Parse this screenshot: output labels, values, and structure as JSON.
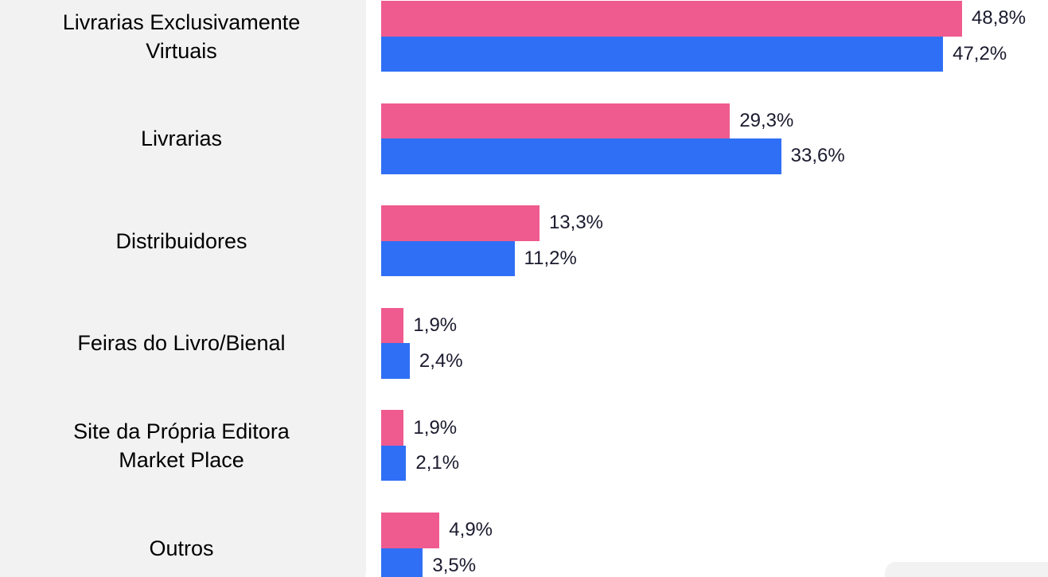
{
  "chart_data": {
    "type": "bar",
    "orientation": "horizontal",
    "categories": [
      "Livrarias Exclusivamente\nVirtuais",
      "Livrarias",
      "Distribuidores",
      "Feiras do Livro/Bienal",
      "Site da Própria Editora\nMarket Place",
      "Outros"
    ],
    "series": [
      {
        "color": "#ef5b8f",
        "values": [
          48.8,
          29.3,
          13.3,
          1.9,
          1.9,
          4.9
        ],
        "value_labels": [
          "48,8%",
          "29,3%",
          "13,3%",
          "1,9%",
          "1,9%",
          "4,9%"
        ]
      },
      {
        "color": "#2f6ff5",
        "values": [
          47.2,
          33.6,
          11.2,
          2.4,
          2.1,
          3.5
        ],
        "value_labels": [
          "47,2%",
          "33,6%",
          "11,2%",
          "2,4%",
          "2,1%",
          "3,5%"
        ]
      }
    ],
    "xlim": [
      0,
      50
    ]
  }
}
